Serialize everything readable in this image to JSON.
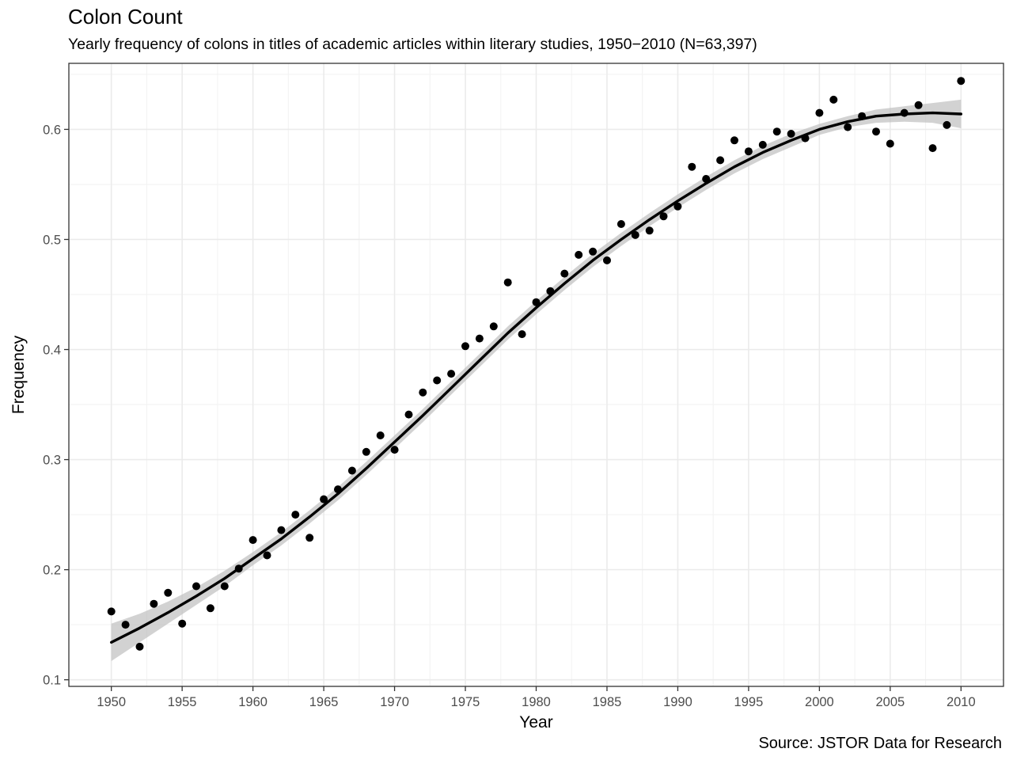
{
  "chart_data": {
    "type": "scatter",
    "title": "Colon Count",
    "subtitle": "Yearly frequency of colons in titles of academic articles within literary studies, 1950−2010 (N=63,397)",
    "caption": "Source: JSTOR Data for Research",
    "xlabel": "Year",
    "ylabel": "Frequency",
    "xlim": [
      1947.0,
      2013.0
    ],
    "ylim": [
      0.094,
      0.66
    ],
    "x_ticks": [
      1950,
      1955,
      1960,
      1965,
      1970,
      1975,
      1980,
      1985,
      1990,
      1995,
      2000,
      2005,
      2010
    ],
    "y_ticks": [
      0.1,
      0.2,
      0.3,
      0.4,
      0.5,
      0.6
    ],
    "x_tick_labels": [
      "1950",
      "1955",
      "1960",
      "1965",
      "1970",
      "1975",
      "1980",
      "1985",
      "1990",
      "1995",
      "2000",
      "2005",
      "2010"
    ],
    "y_tick_labels": [
      "0.1",
      "0.2",
      "0.3",
      "0.4",
      "0.5",
      "0.6"
    ],
    "grid": true,
    "points": {
      "x": [
        1950,
        1951,
        1952,
        1953,
        1954,
        1955,
        1956,
        1957,
        1958,
        1959,
        1960,
        1961,
        1962,
        1963,
        1964,
        1965,
        1966,
        1967,
        1968,
        1969,
        1970,
        1971,
        1972,
        1973,
        1974,
        1975,
        1976,
        1977,
        1978,
        1979,
        1980,
        1981,
        1982,
        1983,
        1984,
        1985,
        1986,
        1987,
        1988,
        1989,
        1990,
        1991,
        1992,
        1993,
        1994,
        1995,
        1996,
        1997,
        1998,
        1999,
        2000,
        2001,
        2002,
        2003,
        2004,
        2005,
        2006,
        2007,
        2008,
        2009,
        2010
      ],
      "y": [
        0.162,
        0.15,
        0.13,
        0.169,
        0.179,
        0.151,
        0.185,
        0.165,
        0.185,
        0.201,
        0.227,
        0.213,
        0.236,
        0.25,
        0.229,
        0.264,
        0.273,
        0.29,
        0.307,
        0.322,
        0.309,
        0.341,
        0.361,
        0.372,
        0.378,
        0.403,
        0.41,
        0.421,
        0.461,
        0.414,
        0.443,
        0.453,
        0.469,
        0.486,
        0.489,
        0.481,
        0.514,
        0.504,
        0.508,
        0.521,
        0.53,
        0.566,
        0.555,
        0.572,
        0.59,
        0.58,
        0.586,
        0.598,
        0.596,
        0.592,
        0.615,
        0.627,
        0.602,
        0.612,
        0.598,
        0.587,
        0.615,
        0.622,
        0.583,
        0.604,
        0.644
      ]
    },
    "smooth": {
      "x": [
        1950,
        1952,
        1954,
        1956,
        1958,
        1960,
        1962,
        1964,
        1966,
        1968,
        1970,
        1972,
        1974,
        1976,
        1978,
        1980,
        1982,
        1984,
        1986,
        1988,
        1990,
        1992,
        1994,
        1996,
        1998,
        2000,
        2002,
        2004,
        2006,
        2008,
        2010
      ],
      "y": [
        0.134,
        0.147,
        0.161,
        0.176,
        0.192,
        0.21,
        0.228,
        0.248,
        0.269,
        0.292,
        0.316,
        0.34,
        0.365,
        0.39,
        0.415,
        0.438,
        0.46,
        0.481,
        0.5,
        0.518,
        0.535,
        0.551,
        0.566,
        0.579,
        0.59,
        0.6,
        0.607,
        0.612,
        0.614,
        0.615,
        0.614
      ],
      "band_halfwidth": [
        0.017,
        0.013,
        0.01,
        0.008,
        0.007,
        0.006,
        0.006,
        0.006,
        0.006,
        0.006,
        0.006,
        0.006,
        0.006,
        0.006,
        0.006,
        0.006,
        0.006,
        0.006,
        0.006,
        0.006,
        0.006,
        0.006,
        0.006,
        0.006,
        0.006,
        0.005,
        0.005,
        0.006,
        0.007,
        0.009,
        0.013
      ]
    },
    "colors": {
      "points": "#000000",
      "line": "#000000",
      "band": "#bfbfbf",
      "grid_major": "#ebebeb",
      "grid_minor": "#f2f2f2",
      "panel_border": "#333333"
    }
  }
}
